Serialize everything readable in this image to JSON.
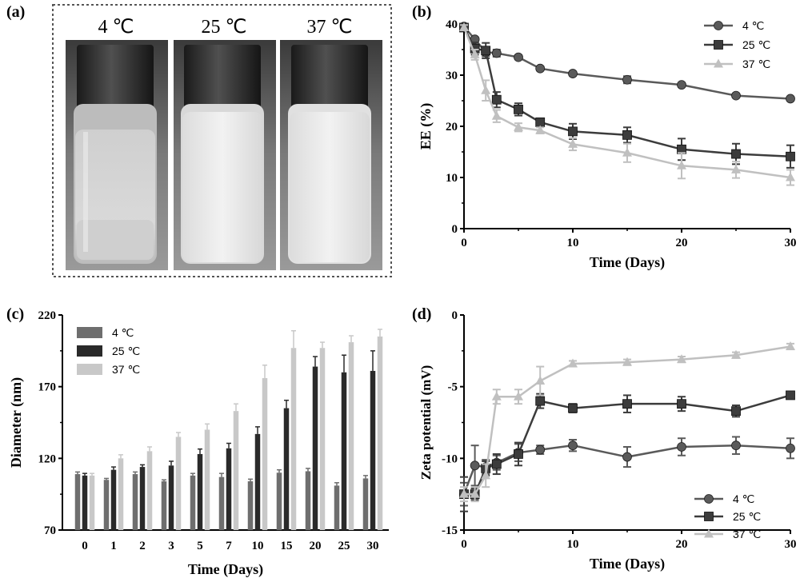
{
  "panels": {
    "a": "(a)",
    "b": "(b)",
    "c": "(c)",
    "d": "(d)"
  },
  "photo": {
    "labels": [
      "4 ℃",
      "25 ℃",
      "37 ℃"
    ]
  },
  "chart_data": [
    {
      "id": "b",
      "type": "line",
      "xlabel": "Time (Days)",
      "ylabel": "EE (%)",
      "xlim": [
        0,
        30
      ],
      "ylim": [
        0,
        40
      ],
      "xticks": [
        0,
        10,
        20,
        30
      ],
      "yticks": [
        0,
        10,
        20,
        30,
        40
      ],
      "legend_position": "top-right",
      "series": [
        {
          "name": "4 ℃",
          "marker": "circle",
          "color": "#5a5a5a",
          "x": [
            0,
            1,
            2,
            3,
            5,
            7,
            10,
            15,
            20,
            25,
            30
          ],
          "y": [
            39.5,
            37.0,
            34.5,
            34.3,
            33.5,
            31.3,
            30.3,
            29.1,
            28.1,
            26.0,
            25.4
          ],
          "err": [
            0.5,
            0.4,
            0.8,
            0.7,
            0.4,
            0.4,
            0.4,
            0.7,
            0.4,
            0.3,
            0.3
          ]
        },
        {
          "name": "25 ℃",
          "marker": "square",
          "color": "#3c3c3c",
          "x": [
            0,
            1,
            2,
            3,
            5,
            7,
            10,
            15,
            20,
            25,
            30
          ],
          "y": [
            39.3,
            35.2,
            34.8,
            25.2,
            23.3,
            20.8,
            19.0,
            18.3,
            15.5,
            14.6,
            14.1
          ],
          "err": [
            0.6,
            1.2,
            1.5,
            1.5,
            1.2,
            0.6,
            1.5,
            1.5,
            2.1,
            2.0,
            2.2
          ]
        },
        {
          "name": "37 ℃",
          "marker": "triangle",
          "color": "#c0c0c0",
          "x": [
            0,
            1,
            2,
            3,
            5,
            7,
            10,
            15,
            20,
            25,
            30
          ],
          "y": [
            39.3,
            34.0,
            27.0,
            22.0,
            19.8,
            19.2,
            16.5,
            14.8,
            12.3,
            11.5,
            10.0
          ],
          "err": [
            0.5,
            1.0,
            2.0,
            1.2,
            0.8,
            0.6,
            1.2,
            1.8,
            2.5,
            1.6,
            1.5
          ]
        }
      ]
    },
    {
      "id": "c",
      "type": "bar",
      "xlabel": "Time (Days)",
      "ylabel": "Diameter (nm)",
      "ylim": [
        70,
        220
      ],
      "yticks": [
        70,
        120,
        170,
        220
      ],
      "categories": [
        "0",
        "1",
        "2",
        "3",
        "5",
        "7",
        "10",
        "15",
        "20",
        "25",
        "30"
      ],
      "legend_position": "top-left",
      "series": [
        {
          "name": "4 ℃",
          "color": "#6e6e6e",
          "values": [
            109,
            105,
            109,
            104,
            108,
            107,
            104,
            110,
            111,
            101,
            106
          ],
          "err": [
            1.5,
            1.0,
            1.5,
            1.0,
            1.5,
            2.5,
            1.5,
            2.0,
            2.0,
            2.0,
            2.0
          ]
        },
        {
          "name": "25 ℃",
          "color": "#2a2a2a",
          "values": [
            108,
            112,
            114,
            115,
            123,
            127,
            137,
            155,
            184,
            180,
            181
          ],
          "err": [
            1.5,
            2.0,
            1.5,
            3.0,
            3.5,
            3.5,
            5.0,
            5.5,
            7.0,
            12.0,
            14.0
          ]
        },
        {
          "name": "37 ℃",
          "color": "#c8c8c8",
          "values": [
            108,
            120,
            125,
            135,
            140,
            153,
            176,
            197,
            197,
            201,
            205
          ],
          "err": [
            1.5,
            2.5,
            3.0,
            3.0,
            4.0,
            5.0,
            9.0,
            12.0,
            4.0,
            4.5,
            5.0
          ]
        }
      ]
    },
    {
      "id": "d",
      "type": "line",
      "xlabel": "Time (Days)",
      "ylabel": "Zeta potential (mV)",
      "xlim": [
        0,
        30
      ],
      "ylim": [
        -15,
        0
      ],
      "xticks": [
        0,
        10,
        20,
        30
      ],
      "yticks": [
        -15,
        -10,
        -5,
        0
      ],
      "legend_position": "bottom-right",
      "series": [
        {
          "name": "4 ℃",
          "marker": "circle",
          "color": "#5a5a5a",
          "x": [
            0,
            1,
            2,
            3,
            5,
            7,
            10,
            15,
            20,
            25,
            30
          ],
          "y": [
            -12.5,
            -10.5,
            -10.6,
            -10.3,
            -9.6,
            -9.4,
            -9.1,
            -9.9,
            -9.2,
            -9.1,
            -9.3
          ],
          "err": [
            0.8,
            1.4,
            0.5,
            0.5,
            0.6,
            0.3,
            0.4,
            0.7,
            0.6,
            0.6,
            0.7
          ]
        },
        {
          "name": "25 ℃",
          "marker": "square",
          "color": "#3c3c3c",
          "x": [
            0,
            1,
            2,
            3,
            5,
            7,
            10,
            15,
            20,
            25,
            30
          ],
          "y": [
            -12.5,
            -12.5,
            -10.7,
            -10.4,
            -9.7,
            -6.0,
            -6.5,
            -6.2,
            -6.2,
            -6.7,
            -5.6
          ],
          "err": [
            1.2,
            0.4,
            0.5,
            0.7,
            0.8,
            0.5,
            0.3,
            0.6,
            0.5,
            0.4,
            0.2
          ]
        },
        {
          "name": "37 ℃",
          "marker": "triangle",
          "color": "#c0c0c0",
          "x": [
            0,
            1,
            2,
            3,
            5,
            7,
            10,
            15,
            20,
            25,
            30
          ],
          "y": [
            -12.5,
            -12.5,
            -11.2,
            -5.7,
            -5.7,
            -4.6,
            -3.4,
            -3.3,
            -3.1,
            -2.8,
            -2.2
          ],
          "err": [
            0.5,
            0.5,
            0.8,
            0.5,
            0.5,
            1.0,
            0.2,
            0.2,
            0.2,
            0.2,
            0.2
          ]
        }
      ]
    }
  ]
}
